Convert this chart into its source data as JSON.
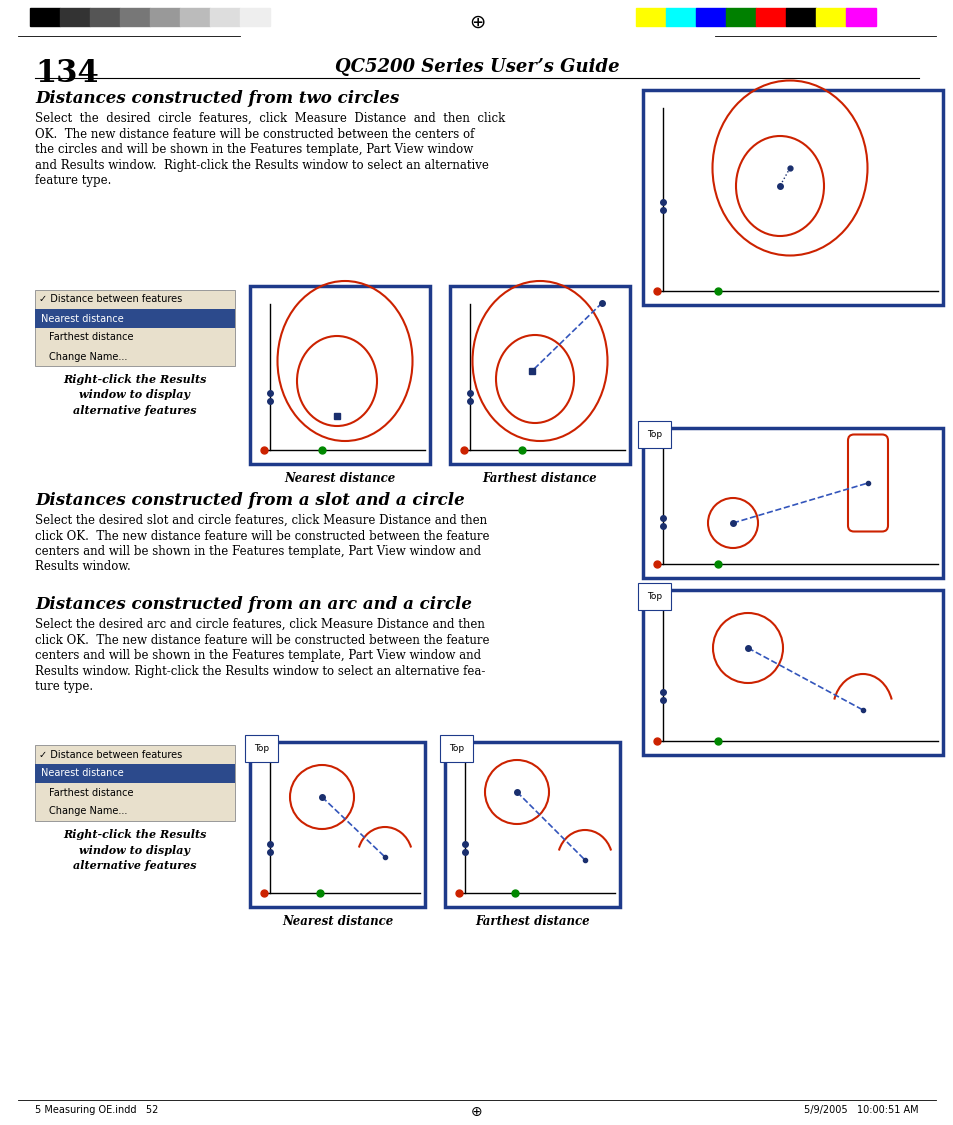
{
  "page_number": "134",
  "page_title": "QC5200 Series User’s Guide",
  "section1_title": "Distances constructed from two circles",
  "section1_body": "Select the desired circle features, click Measure Distance and then click\nOK.  The new distance feature will be constructed between the centers of\nthe circles and will be shown in the Features template, Part View window\nand Results window.  Right-click the Results window to select an alternative\nfeature type.",
  "section2_title": "Distances constructed from a slot and a circle",
  "section2_body": "Select the desired slot and circle features, click Measure Distance and then\nclick OK.  The new distance feature will be constructed between the feature\ncenters and will be shown in the Features template, Part View window and\nResults window.",
  "section3_title": "Distances constructed from an arc and a circle",
  "section3_body": "Select the desired arc and circle features, click Measure Distance and then\nclick OK.  The new distance feature will be constructed between the feature\ncenters and will be shown in the Features template, Part View window and\nResults window. Right-click the Results window to select an alternative fea-\nture type.",
  "caption_nearest": "Nearest distance",
  "caption_farthest": "Farthest distance",
  "right_click_caption": "Right-click the Results\nwindow to display\nalternative features",
  "menu_items": [
    "✓ Distance between features",
    "Nearest distance",
    "Farthest distance",
    "Change Name..."
  ],
  "menu_selected_idx": 1,
  "bg_color": "#ffffff",
  "border_color": "#1e3a8a",
  "red_color": "#cc2200",
  "blue_dashed": "#3355bb",
  "darkblue": "#1a2f6e",
  "menu_bg": "#e8e0cc",
  "menu_highlight": "#2c4a8c",
  "strip_left": [
    "#000000",
    "#333333",
    "#555555",
    "#777777",
    "#999999",
    "#bbbbbb",
    "#dddddd",
    "#eeeeee"
  ],
  "strip_right": [
    "#ffff00",
    "#00ffff",
    "#0000ff",
    "#008000",
    "#ff0000",
    "#000000",
    "#ffff00",
    "#ff00ff"
  ],
  "footer_left": "5 Measuring OE.indd   52",
  "footer_right": "5/9/2005   10:00:51 AM"
}
